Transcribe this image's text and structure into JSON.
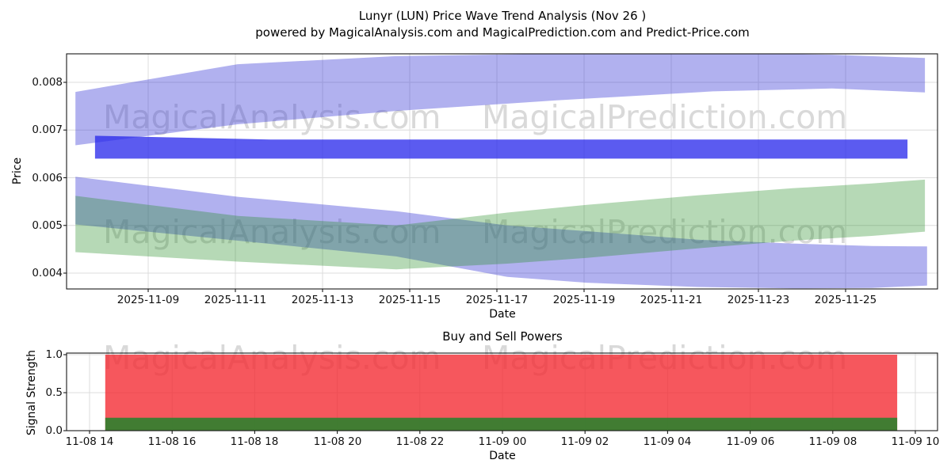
{
  "watermarks": {
    "left_text": "MagicalAnalysis.com",
    "right_text": "MagicalPrediction.com",
    "color": "#d9d9d9"
  },
  "chart_data": [
    {
      "type": "area",
      "title": "Lunyr (LUN) Price Wave Trend Analysis (Nov 26 )",
      "subtitle": "powered by MagicalAnalysis.com and MagicalPrediction.com and Predict-Price.com",
      "xlabel": "Date",
      "ylabel": "Price",
      "grid": true,
      "x_tick_labels": [
        "2025-11-09",
        "2025-11-11",
        "2025-11-13",
        "2025-11-15",
        "2025-11-17",
        "2025-11-19",
        "2025-11-21",
        "2025-11-23",
        "2025-11-25"
      ],
      "y_tick_labels": [
        "0.004",
        "0.005",
        "0.006",
        "0.007",
        "0.008"
      ],
      "y_tick_values": [
        0.004,
        0.005,
        0.006,
        0.007,
        0.008
      ],
      "ylim": [
        0.00367,
        0.00863
      ],
      "x_units": "days since 2025-11-09",
      "xlim": [
        -1.87,
        18.15
      ],
      "series": [
        {
          "name": "upper-forecast-band",
          "color": "rgba(60,60,215,0.40)",
          "x": [
            -1.67,
            2.05,
            5.69,
            9.33,
            12.96,
            15.69,
            17.82
          ],
          "upper": [
            0.0078,
            0.00838,
            0.00855,
            0.0086,
            0.00861,
            0.00858,
            0.00851
          ],
          "lower": [
            0.00668,
            0.00712,
            0.0074,
            0.00762,
            0.00781,
            0.00787,
            0.00779
          ]
        },
        {
          "name": "mid-price-channel",
          "color": "rgba(40,40,235,0.76)",
          "x": [
            -1.22,
            2.8,
            17.42
          ],
          "upper": [
            0.00688,
            0.0068,
            0.0068
          ],
          "lower": [
            0.0064,
            0.0064,
            0.0064
          ]
        },
        {
          "name": "lower-forecast-band",
          "color": "rgba(60,60,215,0.40)",
          "x": [
            -1.67,
            2.06,
            5.69,
            8.24,
            10.06,
            12.6,
            14.78,
            16.6,
            17.87
          ],
          "upper": [
            0.00602,
            0.0056,
            0.0053,
            0.005,
            0.00488,
            0.0047,
            0.00462,
            0.00457,
            0.00456
          ],
          "lower": [
            0.00502,
            0.00468,
            0.00435,
            0.00392,
            0.0038,
            0.00371,
            0.00368,
            0.00369,
            0.00374
          ]
        },
        {
          "name": "support-wave-band",
          "color": "rgba(34,139,34,0.33)",
          "x": [
            -1.67,
            2.06,
            5.69,
            8.24,
            10.06,
            12.6,
            14.78,
            16.6,
            17.82
          ],
          "upper": [
            0.00562,
            0.0052,
            0.005,
            0.00527,
            0.00543,
            0.00563,
            0.00578,
            0.00588,
            0.00596
          ],
          "lower": [
            0.00444,
            0.00424,
            0.00408,
            0.0042,
            0.00432,
            0.00452,
            0.00468,
            0.00478,
            0.00487
          ]
        }
      ]
    },
    {
      "type": "area",
      "title": "Buy and Sell Powers",
      "xlabel": "Date",
      "ylabel": "Signal Strength",
      "grid": true,
      "x_tick_labels": [
        "11-08 14",
        "11-08 16",
        "11-08 18",
        "11-08 20",
        "11-08 22",
        "11-09 00",
        "11-09 02",
        "11-09 04",
        "11-09 06",
        "11-09 08",
        "11-09 10"
      ],
      "y_tick_labels": [
        "0.0",
        "0.5",
        "1.0"
      ],
      "y_tick_values": [
        0.0,
        0.5,
        1.0
      ],
      "ylim": [
        0,
        1.04
      ],
      "x_units": "hours since 11-08 14:00",
      "xlim": [
        -0.54,
        20.54
      ],
      "series": [
        {
          "name": "sell-power",
          "color": "rgba(243,40,48,0.78)",
          "x": [
            0.38,
            19.56
          ],
          "value": 1.0
        },
        {
          "name": "buy-power",
          "color": "rgba(40,130,44,0.88)",
          "x": [
            0.38,
            19.56
          ],
          "value": 0.17
        }
      ]
    }
  ]
}
